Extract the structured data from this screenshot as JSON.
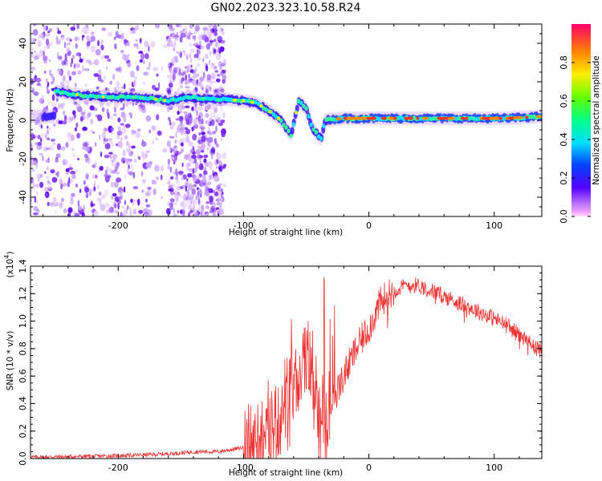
{
  "title": "GN02.2023.323.10.58.R24",
  "chart_data": [
    {
      "type": "heatmap",
      "name": "spectrogram",
      "xlabel": "Height of straight line (km)",
      "ylabel": "Frequency (Hz)",
      "xlim": [
        -270,
        138
      ],
      "ylim": [
        -50,
        50
      ],
      "xticks": [
        "-200",
        "-100",
        "0",
        "100"
      ],
      "yticks": [
        "-40",
        "-20",
        "0",
        "20",
        "40"
      ],
      "ridge": [
        {
          "x": -250,
          "y": 15
        },
        {
          "x": -230,
          "y": 13
        },
        {
          "x": -210,
          "y": 12
        },
        {
          "x": -190,
          "y": 12
        },
        {
          "x": -170,
          "y": 11
        },
        {
          "x": -160,
          "y": 10
        },
        {
          "x": -145,
          "y": 12
        },
        {
          "x": -130,
          "y": 11
        },
        {
          "x": -115,
          "y": 11
        },
        {
          "x": -100,
          "y": 10
        },
        {
          "x": -90,
          "y": 9
        },
        {
          "x": -80,
          "y": 5
        },
        {
          "x": -70,
          "y": 0
        },
        {
          "x": -62,
          "y": -8
        },
        {
          "x": -56,
          "y": 10
        },
        {
          "x": -50,
          "y": 6
        },
        {
          "x": -45,
          "y": -4
        },
        {
          "x": -38,
          "y": -10
        },
        {
          "x": -35,
          "y": 0
        },
        {
          "x": -20,
          "y": 1
        },
        {
          "x": 0,
          "y": 1
        },
        {
          "x": 20,
          "y": 1
        },
        {
          "x": 50,
          "y": 1
        },
        {
          "x": 80,
          "y": 1
        },
        {
          "x": 110,
          "y": 1
        },
        {
          "x": 138,
          "y": 2
        }
      ]
    },
    {
      "type": "colorbar",
      "name": "colorbar",
      "label": "Normalized spectral amplitude",
      "range": [
        0,
        1
      ],
      "ticks": [
        "0.0",
        "0.2",
        "0.4",
        "0.6",
        "0.8"
      ]
    },
    {
      "type": "line",
      "name": "snr",
      "xlabel": "Height of straight line (km)",
      "ylabel": "SNR (10 * v/v)",
      "scale_label_base": "(x10",
      "scale_label_exp": "4",
      "scale_label_end": ")",
      "xlim": [
        -270,
        138
      ],
      "ylim": [
        0,
        1.4
      ],
      "xticks": [
        "-200",
        "-100",
        "0",
        "100"
      ],
      "yticks": [
        "0.0",
        "0.2",
        "0.4",
        "0.6",
        "0.8",
        "1.0",
        "1.2",
        "1.4"
      ],
      "color": "#ee3333",
      "x": [
        -270,
        -230,
        -200,
        -170,
        -150,
        -140,
        -120,
        -100,
        -90,
        -80,
        -70,
        -60,
        -55,
        -50,
        -45,
        -40,
        -35,
        -30,
        -20,
        -10,
        0,
        5,
        10,
        20,
        30,
        40,
        50,
        60,
        70,
        80,
        90,
        100,
        110,
        120,
        130,
        138
      ],
      "y": [
        0.01,
        0.015,
        0.02,
        0.03,
        0.04,
        0.05,
        0.05,
        0.08,
        0.12,
        0.2,
        0.3,
        0.45,
        0.6,
        0.7,
        0.5,
        0.3,
        0.2,
        0.4,
        0.6,
        0.8,
        0.95,
        1.05,
        1.15,
        1.22,
        1.26,
        1.26,
        1.22,
        1.18,
        1.14,
        1.1,
        1.06,
        1.02,
        0.97,
        0.9,
        0.83,
        0.78
      ]
    }
  ]
}
